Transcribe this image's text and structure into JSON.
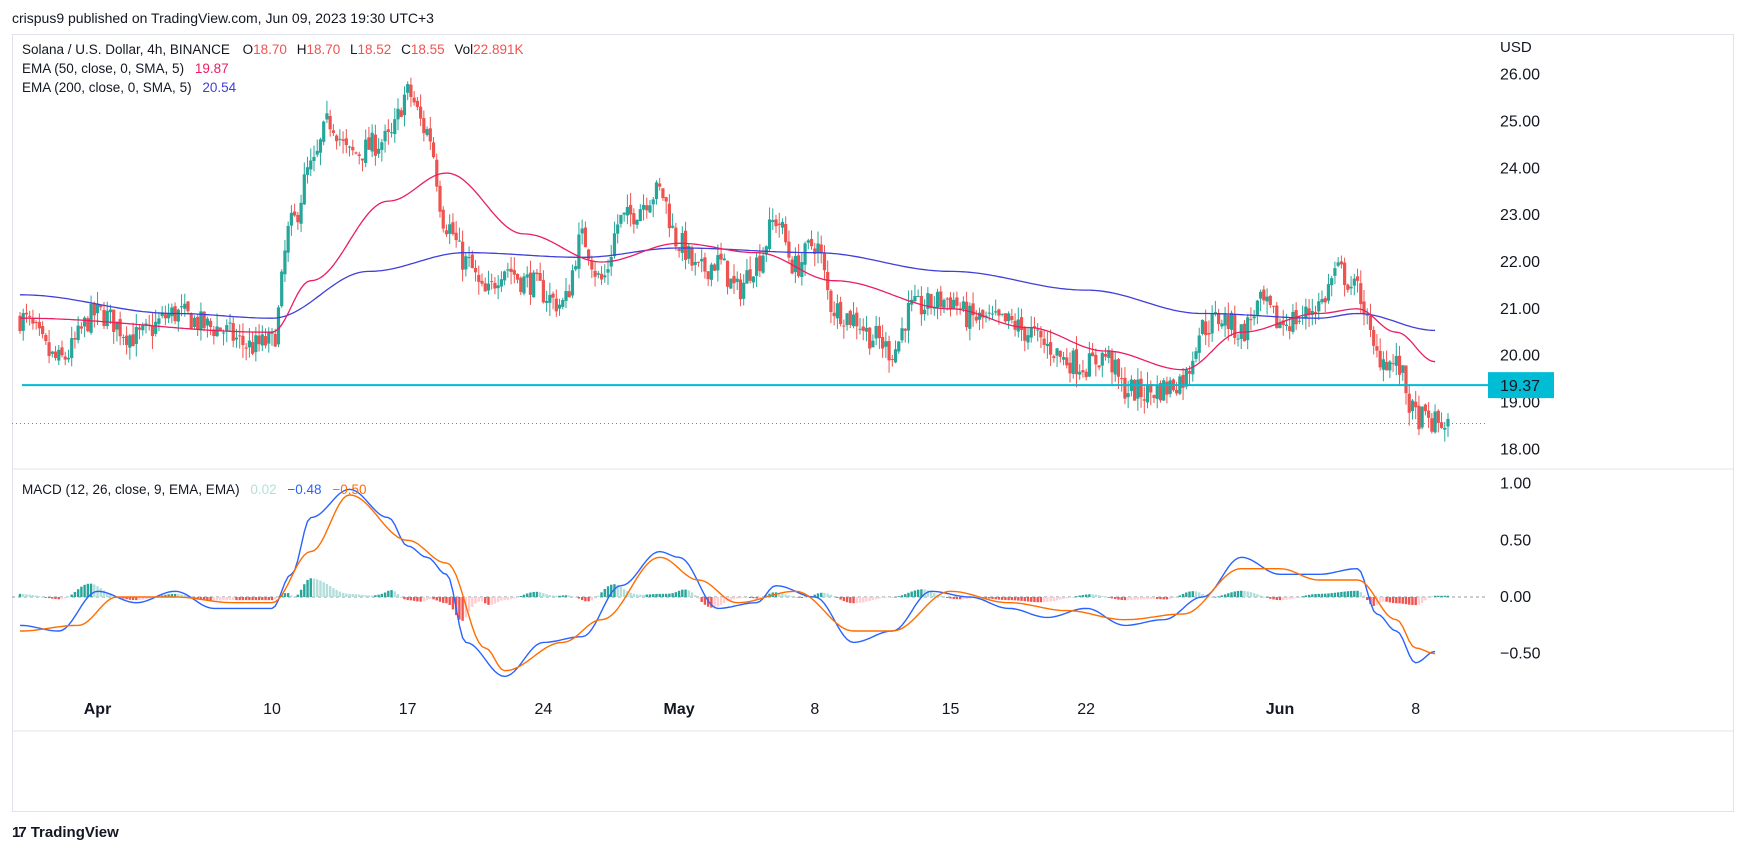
{
  "header": {
    "publish_line": "crispus9 published on TradingView.com, Jun 09, 2023 19:30 UTC+3"
  },
  "legend": {
    "symbol": "Solana / U.S. Dollar, 4h, BINANCE",
    "o_label": "O",
    "o_val": "18.70",
    "h_label": "H",
    "h_val": "18.70",
    "l_label": "L",
    "l_val": "18.52",
    "c_label": "C",
    "c_val": "18.55",
    "vol_label": "Vol",
    "vol_val": "22.891K",
    "ema50_label": "EMA (50, close, 0, SMA, 5)",
    "ema50_val": "19.87",
    "ema200_label": "EMA (200, close, 0, SMA, 5)",
    "ema200_val": "20.54",
    "macd_label": "MACD (12, 26, close, 9, EMA, EMA)",
    "macd_hist_val": "0.02",
    "macd_val": "−0.48",
    "macd_signal_val": "−0.50"
  },
  "colors": {
    "up": "#26a69a",
    "down": "#ef5350",
    "ema50": "#e91e63",
    "ema200": "#3f3fd9",
    "support": "#00bcd4",
    "macd_line": "#2962ff",
    "signal_line": "#ff6d00",
    "hist_up_strong": "#26a69a",
    "hist_up_weak": "#b2dfdb",
    "hist_down_strong": "#ef5350",
    "hist_down_weak": "#ffcdd2"
  },
  "axis": {
    "currency": "USD",
    "price_ticks": [
      "26.00",
      "25.00",
      "24.00",
      "23.00",
      "22.00",
      "21.00",
      "20.00",
      "19.00",
      "18.00"
    ],
    "macd_ticks": [
      "1.00",
      "0.50",
      "0.00",
      "−0.50"
    ],
    "time_labels": [
      "Apr",
      "10",
      "17",
      "24",
      "May",
      "8",
      "15",
      "22",
      "Jun",
      "8"
    ],
    "support_label": "19.37"
  },
  "footer": {
    "brand": "TradingView",
    "logo_glyph": "17"
  },
  "chart_data": [
    {
      "type": "candlestick",
      "title": "Solana / U.S. Dollar, 4h, BINANCE",
      "ylim": [
        17.6,
        26.4
      ],
      "support_level": 19.37,
      "last_price": 18.55,
      "x_labels": [
        "Apr",
        "10",
        "17",
        "24",
        "May",
        "8",
        "15",
        "22",
        "Jun",
        "8"
      ],
      "close_anchors": [
        {
          "date": "2023-03-28",
          "close": 20.8
        },
        {
          "date": "2023-03-30",
          "close": 19.9
        },
        {
          "date": "2023-04-01",
          "close": 20.9
        },
        {
          "date": "2023-04-03",
          "close": 20.4
        },
        {
          "date": "2023-04-05",
          "close": 20.9
        },
        {
          "date": "2023-04-07",
          "close": 20.6
        },
        {
          "date": "2023-04-09",
          "close": 20.2
        },
        {
          "date": "2023-04-10",
          "close": 20.3
        },
        {
          "date": "2023-04-11",
          "close": 22.8
        },
        {
          "date": "2023-04-12",
          "close": 24.0
        },
        {
          "date": "2023-04-13",
          "close": 25.0
        },
        {
          "date": "2023-04-14",
          "close": 24.3
        },
        {
          "date": "2023-04-16",
          "close": 24.6
        },
        {
          "date": "2023-04-17",
          "close": 25.6
        },
        {
          "date": "2023-04-18",
          "close": 24.8
        },
        {
          "date": "2023-04-19",
          "close": 22.8
        },
        {
          "date": "2023-04-20",
          "close": 22.0
        },
        {
          "date": "2023-04-21",
          "close": 21.3
        },
        {
          "date": "2023-04-22",
          "close": 21.9
        },
        {
          "date": "2023-04-23",
          "close": 21.6
        },
        {
          "date": "2023-04-25",
          "close": 21.1
        },
        {
          "date": "2023-04-26",
          "close": 22.5
        },
        {
          "date": "2023-04-27",
          "close": 21.6
        },
        {
          "date": "2023-04-28",
          "close": 22.9
        },
        {
          "date": "2023-04-30",
          "close": 23.5
        },
        {
          "date": "2023-05-01",
          "close": 22.4
        },
        {
          "date": "2023-05-02",
          "close": 21.8
        },
        {
          "date": "2023-05-03",
          "close": 22.0
        },
        {
          "date": "2023-05-04",
          "close": 21.4
        },
        {
          "date": "2023-05-05",
          "close": 22.0
        },
        {
          "date": "2023-05-06",
          "close": 22.9
        },
        {
          "date": "2023-05-07",
          "close": 21.9
        },
        {
          "date": "2023-05-08",
          "close": 22.4
        },
        {
          "date": "2023-05-09",
          "close": 21.0
        },
        {
          "date": "2023-05-10",
          "close": 20.8
        },
        {
          "date": "2023-05-11",
          "close": 20.4
        },
        {
          "date": "2023-05-12",
          "close": 20.1
        },
        {
          "date": "2023-05-13",
          "close": 21.0
        },
        {
          "date": "2023-05-15",
          "close": 21.2
        },
        {
          "date": "2023-05-16",
          "close": 20.8
        },
        {
          "date": "2023-05-18",
          "close": 20.7
        },
        {
          "date": "2023-05-19",
          "close": 20.5
        },
        {
          "date": "2023-05-20",
          "close": 20.2
        },
        {
          "date": "2023-05-21",
          "close": 19.9
        },
        {
          "date": "2023-05-22",
          "close": 19.8
        },
        {
          "date": "2023-05-23",
          "close": 20.0
        },
        {
          "date": "2023-05-24",
          "close": 19.3
        },
        {
          "date": "2023-05-25",
          "close": 19.2
        },
        {
          "date": "2023-05-26",
          "close": 19.3
        },
        {
          "date": "2023-05-27",
          "close": 19.5
        },
        {
          "date": "2023-05-28",
          "close": 20.6
        },
        {
          "date": "2023-05-29",
          "close": 20.8
        },
        {
          "date": "2023-05-30",
          "close": 20.5
        },
        {
          "date": "2023-05-31",
          "close": 21.1
        },
        {
          "date": "2023-06-01",
          "close": 20.7
        },
        {
          "date": "2023-06-02",
          "close": 20.8
        },
        {
          "date": "2023-06-03",
          "close": 21.1
        },
        {
          "date": "2023-06-04",
          "close": 21.8
        },
        {
          "date": "2023-06-05",
          "close": 21.4
        },
        {
          "date": "2023-06-06",
          "close": 20.0
        },
        {
          "date": "2023-06-07",
          "close": 19.8
        },
        {
          "date": "2023-06-08",
          "close": 18.7
        },
        {
          "date": "2023-06-09",
          "close": 18.55
        }
      ],
      "ema50_anchors": [
        {
          "date": "2023-03-28",
          "value": 20.8
        },
        {
          "date": "2023-04-10",
          "value": 20.5
        },
        {
          "date": "2023-04-12",
          "value": 21.6
        },
        {
          "date": "2023-04-16",
          "value": 23.3
        },
        {
          "date": "2023-04-19",
          "value": 23.9
        },
        {
          "date": "2023-04-23",
          "value": 22.6
        },
        {
          "date": "2023-04-27",
          "value": 22.0
        },
        {
          "date": "2023-05-01",
          "value": 22.4
        },
        {
          "date": "2023-05-05",
          "value": 22.2
        },
        {
          "date": "2023-05-09",
          "value": 21.6
        },
        {
          "date": "2023-05-15",
          "value": 21.0
        },
        {
          "date": "2023-05-19",
          "value": 20.6
        },
        {
          "date": "2023-05-23",
          "value": 20.1
        },
        {
          "date": "2023-05-27",
          "value": 19.7
        },
        {
          "date": "2023-05-30",
          "value": 20.5
        },
        {
          "date": "2023-06-03",
          "value": 20.9
        },
        {
          "date": "2023-06-05",
          "value": 21.0
        },
        {
          "date": "2023-06-07",
          "value": 20.5
        },
        {
          "date": "2023-06-09",
          "value": 19.87
        }
      ],
      "ema200_anchors": [
        {
          "date": "2023-03-28",
          "value": 21.3
        },
        {
          "date": "2023-04-05",
          "value": 20.9
        },
        {
          "date": "2023-04-10",
          "value": 20.8
        },
        {
          "date": "2023-04-15",
          "value": 21.8
        },
        {
          "date": "2023-04-20",
          "value": 22.2
        },
        {
          "date": "2023-04-26",
          "value": 22.1
        },
        {
          "date": "2023-05-01",
          "value": 22.3
        },
        {
          "date": "2023-05-08",
          "value": 22.2
        },
        {
          "date": "2023-05-15",
          "value": 21.8
        },
        {
          "date": "2023-05-22",
          "value": 21.4
        },
        {
          "date": "2023-05-28",
          "value": 20.9
        },
        {
          "date": "2023-06-03",
          "value": 20.8
        },
        {
          "date": "2023-06-05",
          "value": 20.9
        },
        {
          "date": "2023-06-09",
          "value": 20.54
        }
      ]
    },
    {
      "type": "line",
      "title": "MACD (12, 26, close, 9, EMA, EMA)",
      "ylim": [
        -0.82,
        1.12
      ],
      "x_labels": [
        "Apr",
        "10",
        "17",
        "24",
        "May",
        "8",
        "15",
        "22",
        "Jun",
        "8"
      ],
      "macd_anchors": [
        {
          "date": "2023-03-28",
          "value": -0.25
        },
        {
          "date": "2023-03-30",
          "value": -0.3
        },
        {
          "date": "2023-04-01",
          "value": 0.05
        },
        {
          "date": "2023-04-03",
          "value": -0.05
        },
        {
          "date": "2023-04-05",
          "value": 0.05
        },
        {
          "date": "2023-04-07",
          "value": -0.1
        },
        {
          "date": "2023-04-10",
          "value": -0.1
        },
        {
          "date": "2023-04-11",
          "value": 0.2
        },
        {
          "date": "2023-04-12",
          "value": 0.7
        },
        {
          "date": "2023-04-14",
          "value": 0.95
        },
        {
          "date": "2023-04-16",
          "value": 0.7
        },
        {
          "date": "2023-04-17",
          "value": 0.45
        },
        {
          "date": "2023-04-18",
          "value": 0.35
        },
        {
          "date": "2023-04-19",
          "value": 0.2
        },
        {
          "date": "2023-04-20",
          "value": -0.4
        },
        {
          "date": "2023-04-22",
          "value": -0.7
        },
        {
          "date": "2023-04-24",
          "value": -0.4
        },
        {
          "date": "2023-04-26",
          "value": -0.35
        },
        {
          "date": "2023-04-28",
          "value": 0.1
        },
        {
          "date": "2023-04-30",
          "value": 0.4
        },
        {
          "date": "2023-05-01",
          "value": 0.35
        },
        {
          "date": "2023-05-03",
          "value": -0.1
        },
        {
          "date": "2023-05-05",
          "value": -0.05
        },
        {
          "date": "2023-05-06",
          "value": 0.1
        },
        {
          "date": "2023-05-08",
          "value": 0.0
        },
        {
          "date": "2023-05-10",
          "value": -0.4
        },
        {
          "date": "2023-05-12",
          "value": -0.3
        },
        {
          "date": "2023-05-14",
          "value": 0.05
        },
        {
          "date": "2023-05-16",
          "value": 0.0
        },
        {
          "date": "2023-05-18",
          "value": -0.1
        },
        {
          "date": "2023-05-20",
          "value": -0.18
        },
        {
          "date": "2023-05-22",
          "value": -0.1
        },
        {
          "date": "2023-05-24",
          "value": -0.25
        },
        {
          "date": "2023-05-26",
          "value": -0.2
        },
        {
          "date": "2023-05-28",
          "value": 0.0
        },
        {
          "date": "2023-05-30",
          "value": 0.35
        },
        {
          "date": "2023-06-01",
          "value": 0.2
        },
        {
          "date": "2023-06-03",
          "value": 0.2
        },
        {
          "date": "2023-06-05",
          "value": 0.25
        },
        {
          "date": "2023-06-06",
          "value": -0.15
        },
        {
          "date": "2023-06-07",
          "value": -0.3
        },
        {
          "date": "2023-06-08",
          "value": -0.58
        },
        {
          "date": "2023-06-09",
          "value": -0.48
        }
      ],
      "signal_anchors": [
        {
          "date": "2023-03-28",
          "value": -0.3
        },
        {
          "date": "2023-03-31",
          "value": -0.25
        },
        {
          "date": "2023-04-02",
          "value": 0.0
        },
        {
          "date": "2023-04-05",
          "value": 0.0
        },
        {
          "date": "2023-04-08",
          "value": -0.05
        },
        {
          "date": "2023-04-10",
          "value": -0.05
        },
        {
          "date": "2023-04-12",
          "value": 0.4
        },
        {
          "date": "2023-04-14",
          "value": 0.9
        },
        {
          "date": "2023-04-17",
          "value": 0.5
        },
        {
          "date": "2023-04-19",
          "value": 0.3
        },
        {
          "date": "2023-04-21",
          "value": -0.45
        },
        {
          "date": "2023-04-22",
          "value": -0.65
        },
        {
          "date": "2023-04-25",
          "value": -0.4
        },
        {
          "date": "2023-04-27",
          "value": -0.2
        },
        {
          "date": "2023-04-30",
          "value": 0.35
        },
        {
          "date": "2023-05-02",
          "value": 0.15
        },
        {
          "date": "2023-05-04",
          "value": -0.05
        },
        {
          "date": "2023-05-07",
          "value": 0.05
        },
        {
          "date": "2023-05-10",
          "value": -0.3
        },
        {
          "date": "2023-05-12",
          "value": -0.3
        },
        {
          "date": "2023-05-15",
          "value": 0.05
        },
        {
          "date": "2023-05-18",
          "value": -0.05
        },
        {
          "date": "2023-05-21",
          "value": -0.12
        },
        {
          "date": "2023-05-24",
          "value": -0.2
        },
        {
          "date": "2023-05-27",
          "value": -0.15
        },
        {
          "date": "2023-05-30",
          "value": 0.25
        },
        {
          "date": "2023-06-01",
          "value": 0.25
        },
        {
          "date": "2023-06-03",
          "value": 0.15
        },
        {
          "date": "2023-06-05",
          "value": 0.15
        },
        {
          "date": "2023-06-07",
          "value": -0.2
        },
        {
          "date": "2023-06-08",
          "value": -0.45
        },
        {
          "date": "2023-06-09",
          "value": -0.5
        }
      ]
    }
  ]
}
